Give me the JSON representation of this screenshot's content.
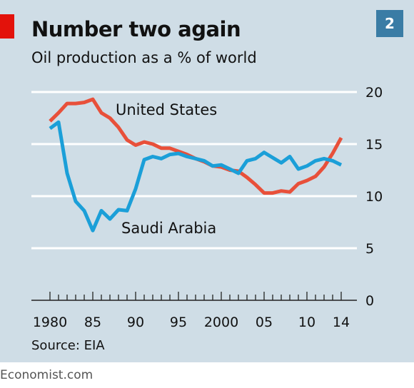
{
  "header": {
    "title": "Number two again",
    "subtitle": "Oil production as a % of world",
    "badge": "2"
  },
  "footer": {
    "source": "Source: EIA",
    "credit": "Economist.com"
  },
  "colors": {
    "background": "#cfdde6",
    "brand_red": "#e3120b",
    "badge": "#3a7ca5",
    "united_states": "#e8503a",
    "saudi_arabia": "#1b9fd8",
    "gridline": "#ffffff"
  },
  "chart_data": {
    "type": "line",
    "title": "Number two again",
    "subtitle": "Oil production as a % of world",
    "xlabel": "",
    "ylabel": "",
    "xlim": [
      1980,
      2014
    ],
    "ylim": [
      0,
      20
    ],
    "y_ticks": [
      "0",
      "5",
      "10",
      "15",
      "20"
    ],
    "x_ticks": [
      {
        "value": 1980,
        "label": "1980"
      },
      {
        "value": 1985,
        "label": "85"
      },
      {
        "value": 1990,
        "label": "90"
      },
      {
        "value": 1995,
        "label": "95"
      },
      {
        "value": 2000,
        "label": "2000"
      },
      {
        "value": 2005,
        "label": "05"
      },
      {
        "value": 2010,
        "label": "10"
      },
      {
        "value": 2014,
        "label": "14"
      }
    ],
    "grid": true,
    "legend": "direct labels",
    "x": [
      1980,
      1981,
      1982,
      1983,
      1984,
      1985,
      1986,
      1987,
      1988,
      1989,
      1990,
      1991,
      1992,
      1993,
      1994,
      1995,
      1996,
      1997,
      1998,
      1999,
      2000,
      2001,
      2002,
      2003,
      2004,
      2005,
      2006,
      2007,
      2008,
      2009,
      2010,
      2011,
      2012,
      2013,
      2014
    ],
    "series": [
      {
        "name": "United States",
        "values": [
          17.2,
          18.0,
          18.9,
          18.9,
          19.0,
          19.3,
          18.0,
          17.5,
          16.6,
          15.4,
          14.9,
          15.2,
          15.0,
          14.6,
          14.6,
          14.3,
          14.0,
          13.6,
          13.3,
          12.9,
          12.8,
          12.5,
          12.4,
          11.8,
          11.1,
          10.3,
          10.3,
          10.5,
          10.4,
          11.2,
          11.5,
          11.9,
          12.8,
          14.1,
          15.6
        ]
      },
      {
        "name": "Saudi Arabia",
        "values": [
          16.5,
          17.1,
          12.2,
          9.5,
          8.6,
          6.7,
          8.6,
          7.8,
          8.7,
          8.6,
          10.7,
          13.5,
          13.8,
          13.6,
          14.0,
          14.1,
          13.8,
          13.6,
          13.4,
          12.9,
          13.0,
          12.6,
          12.2,
          13.4,
          13.6,
          14.2,
          13.7,
          13.2,
          13.8,
          12.6,
          12.9,
          13.4,
          13.6,
          13.4,
          13.0
        ]
      }
    ]
  }
}
